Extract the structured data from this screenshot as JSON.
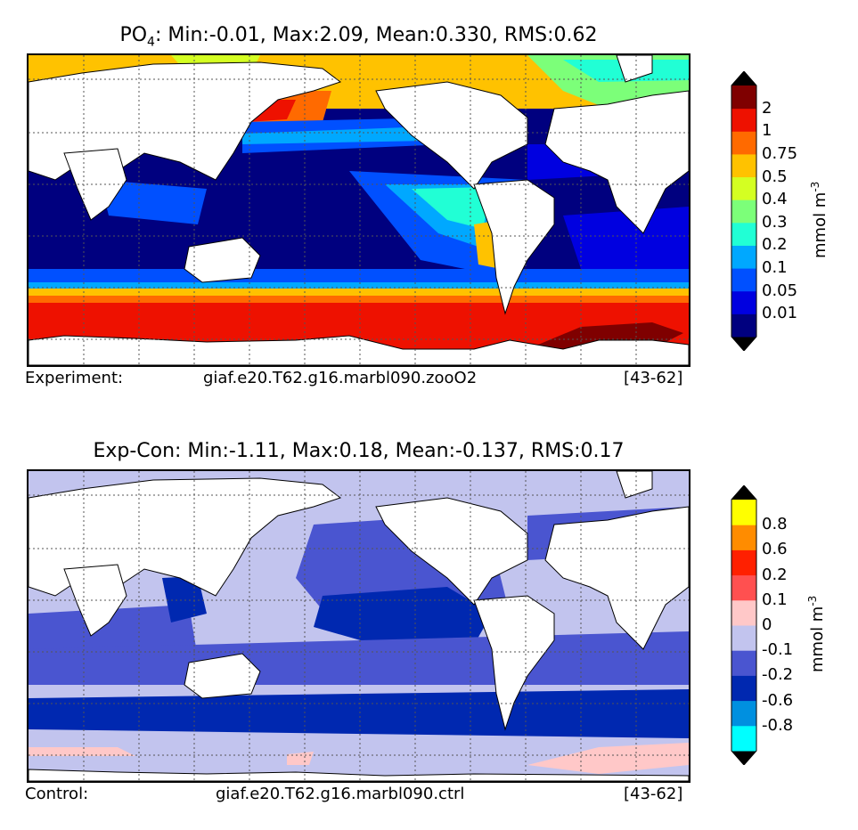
{
  "chart_data": [
    {
      "type": "heatmap",
      "title_main": "PO",
      "title_sub": "4",
      "title_rest": ": Min:-0.01, Max:2.09, Mean:0.330, RMS:0.62",
      "footer": {
        "left": "Experiment:",
        "center": "giaf.e20.T62.g16.marbl090.zooO2",
        "right": "[43-62]"
      },
      "colorbar": {
        "unit_label": "mmol m",
        "unit_exp": "-3",
        "ticks": [
          "0.01",
          "0.05",
          "0.1",
          "0.2",
          "0.3",
          "0.4",
          "0.5",
          "0.75",
          "1",
          "2"
        ],
        "colors": [
          "#00007f",
          "#0000e0",
          "#0050ff",
          "#00a8ff",
          "#21ffd5",
          "#7cff79",
          "#d4ff22",
          "#ffc200",
          "#ff6a00",
          "#ee1100",
          "#7f0000"
        ],
        "extend_colors": {
          "under": "#000000",
          "over": "#000000"
        }
      },
      "stats": {
        "min": -0.01,
        "max": 2.09,
        "mean": 0.33,
        "rms": 0.62
      }
    },
    {
      "type": "heatmap",
      "title": "Exp-Con: Min:-1.11, Max:0.18, Mean:-0.137, RMS:0.17",
      "footer": {
        "left": "Control:",
        "center": "giaf.e20.T62.g16.marbl090.ctrl",
        "right": "[43-62]"
      },
      "colorbar": {
        "unit_label": "mmol m",
        "unit_exp": "-3",
        "ticks": [
          "-0.8",
          "-0.6",
          "-0.2",
          "-0.1",
          "0",
          "0.1",
          "0.2",
          "0.6",
          "0.8"
        ],
        "colors": [
          "#00ffff",
          "#0090e0",
          "#0028b0",
          "#4a55d0",
          "#c2c4ee",
          "#ffc8c8",
          "#ff5050",
          "#ff2000",
          "#ff8c00",
          "#ffff00"
        ],
        "extend_colors": {
          "under": "#000000",
          "over": "#000000"
        }
      },
      "stats": {
        "min": -1.11,
        "max": 0.18,
        "mean": -0.137,
        "rms": 0.17
      }
    }
  ]
}
